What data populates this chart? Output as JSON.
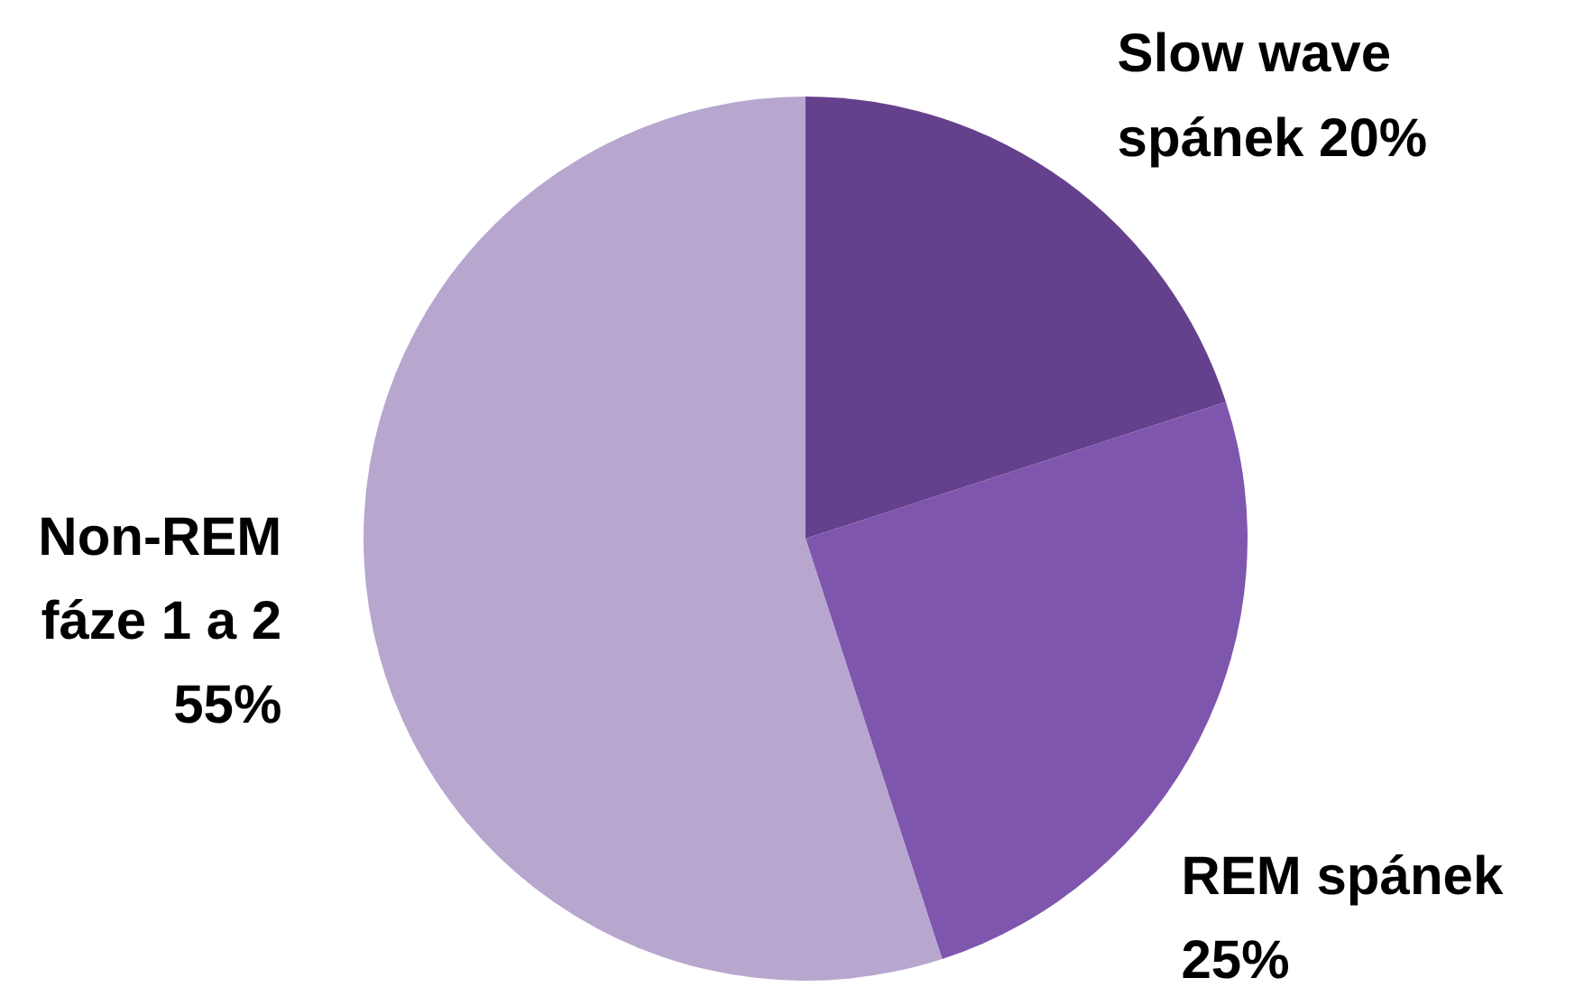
{
  "chart_data": {
    "type": "pie",
    "categories": [
      "Slow wave spánek",
      "REM spánek",
      "Non-REM fáze 1 a 2"
    ],
    "values": [
      20,
      25,
      55
    ],
    "value_labels": [
      "20%",
      "25%",
      "55%"
    ],
    "colors": [
      "#65418d",
      "#7f56ad",
      "#b7a6ce"
    ]
  }
}
